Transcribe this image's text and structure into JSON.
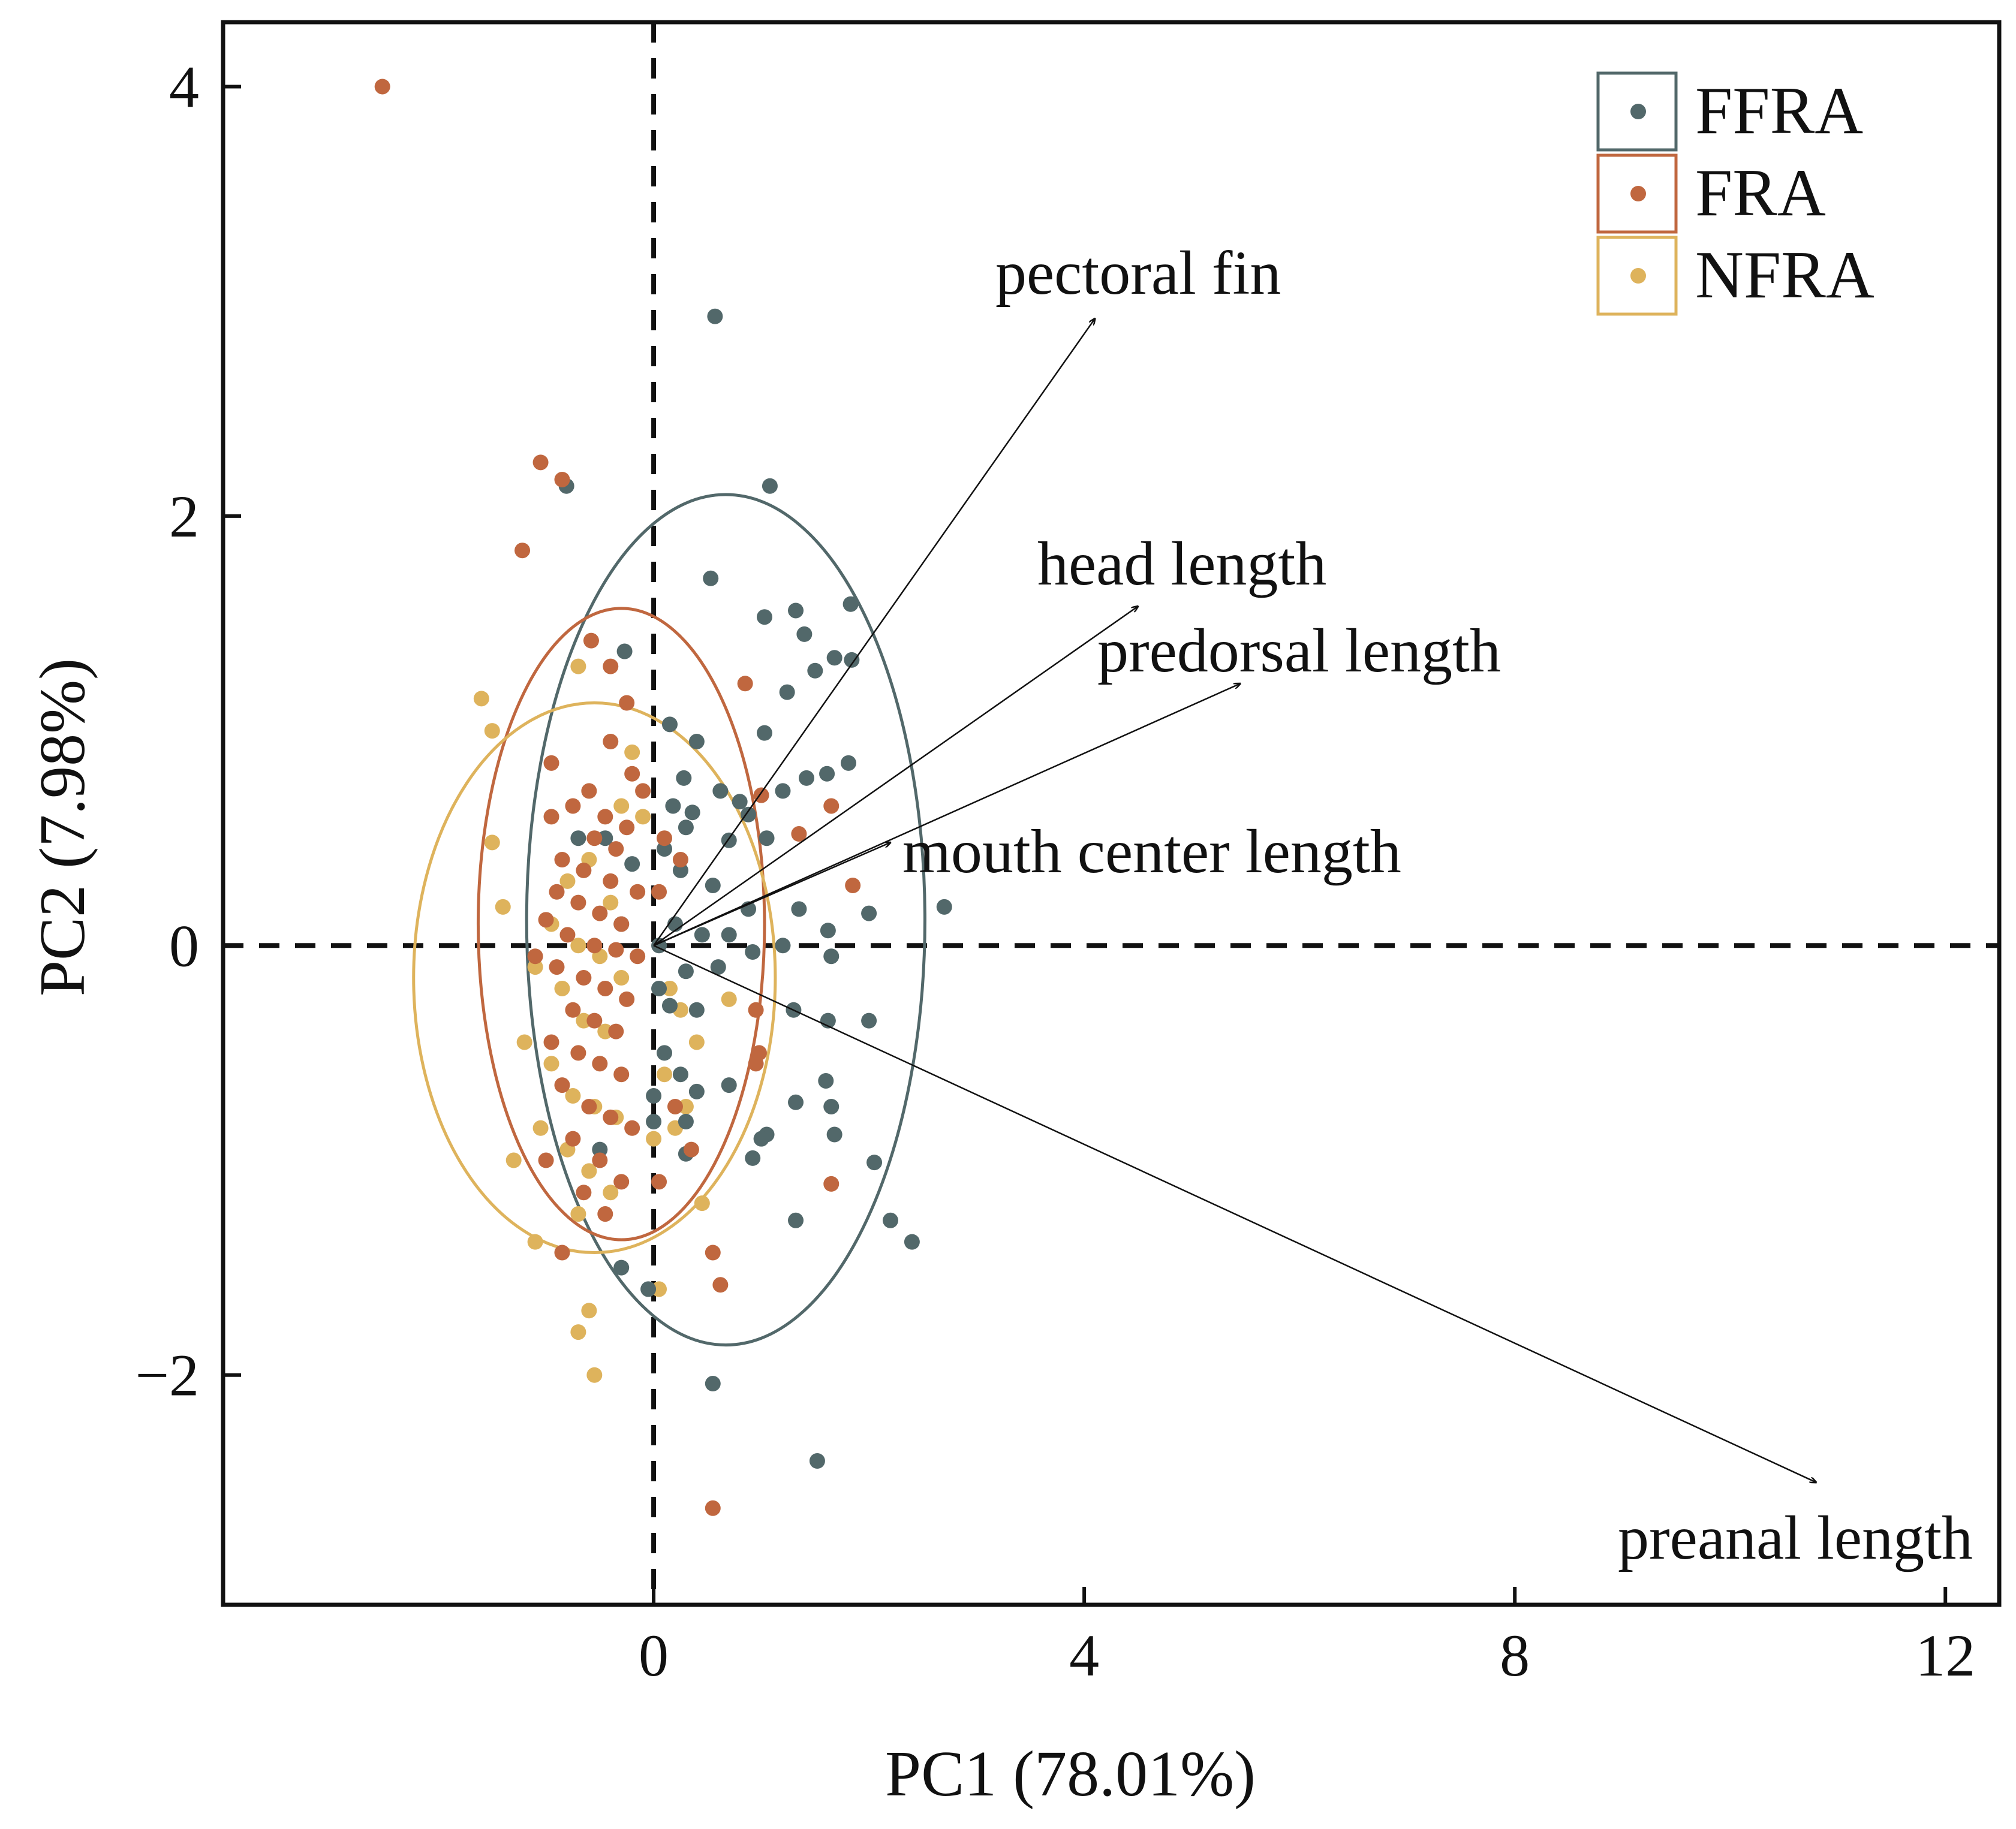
{
  "chart_data": {
    "type": "scatter",
    "subtype": "PCA biplot",
    "xlabel": "PC1 (78.01%)",
    "ylabel": "PC2 (7.98%)",
    "xlim": [
      -4.0,
      12.5
    ],
    "ylim": [
      -3.07,
      4.3
    ],
    "xticks": [
      0,
      4,
      8,
      12
    ],
    "xtick_labels": [
      "0",
      "4",
      "8",
      "12"
    ],
    "yticks": [
      -2,
      0,
      2,
      4
    ],
    "ytick_labels": [
      "−2",
      "0",
      "2",
      "4"
    ],
    "reference_lines": {
      "x": 0,
      "y": 0,
      "style": "dashed"
    },
    "legend": {
      "placement": "top-right",
      "style": "boxed"
    },
    "series": [
      {
        "name": "FFRA",
        "color": "#52686a",
        "ellipse": {
          "center": [
            0.67,
            0.12
          ],
          "rx": 1.85,
          "ry": 1.98
        },
        "points": [
          [
            0.57,
            2.93
          ],
          [
            1.08,
            2.14
          ],
          [
            -0.81,
            2.14
          ],
          [
            0.53,
            1.71
          ],
          [
            1.32,
            1.56
          ],
          [
            1.03,
            1.53
          ],
          [
            1.68,
            1.34
          ],
          [
            1.5,
            1.28
          ],
          [
            1.4,
            1.45
          ],
          [
            1.83,
            1.59
          ],
          [
            1.84,
            1.33
          ],
          [
            1.24,
            1.18
          ],
          [
            -0.27,
            1.37
          ],
          [
            1.03,
            0.99
          ],
          [
            0.15,
            1.03
          ],
          [
            0.4,
            0.95
          ],
          [
            0.28,
            0.78
          ],
          [
            1.42,
            0.78
          ],
          [
            1.81,
            0.85
          ],
          [
            1.61,
            0.8
          ],
          [
            0.62,
            0.72
          ],
          [
            0.8,
            0.67
          ],
          [
            1.2,
            0.72
          ],
          [
            0.88,
            0.61
          ],
          [
            0.18,
            0.65
          ],
          [
            0.36,
            0.62
          ],
          [
            0.7,
            0.49
          ],
          [
            1.05,
            0.5
          ],
          [
            0.1,
            0.45
          ],
          [
            -0.45,
            0.5
          ],
          [
            0.25,
            0.35
          ],
          [
            0.55,
            0.28
          ],
          [
            0.2,
            0.1
          ],
          [
            0.88,
            0.17
          ],
          [
            1.35,
            0.17
          ],
          [
            1.62,
            0.07
          ],
          [
            2.0,
            0.15
          ],
          [
            2.7,
            0.18
          ],
          [
            0.45,
            0.05
          ],
          [
            0.7,
            0.05
          ],
          [
            1.2,
            0.0
          ],
          [
            0.92,
            -0.03
          ],
          [
            0.6,
            -0.1
          ],
          [
            0.3,
            -0.12
          ],
          [
            1.65,
            -0.05
          ],
          [
            0.05,
            -0.2
          ],
          [
            0.15,
            -0.28
          ],
          [
            0.4,
            -0.3
          ],
          [
            1.3,
            -0.3
          ],
          [
            1.62,
            -0.35
          ],
          [
            2.0,
            -0.35
          ],
          [
            0.1,
            -0.5
          ],
          [
            0.25,
            -0.6
          ],
          [
            0.0,
            -0.7
          ],
          [
            0.7,
            -0.65
          ],
          [
            1.6,
            -0.63
          ],
          [
            1.65,
            -0.75
          ],
          [
            1.32,
            -0.73
          ],
          [
            0.4,
            -0.68
          ],
          [
            0.3,
            -0.82
          ],
          [
            0.0,
            -0.82
          ],
          [
            1.05,
            -0.88
          ],
          [
            1.0,
            -0.9
          ],
          [
            1.68,
            -0.88
          ],
          [
            2.05,
            -1.01
          ],
          [
            0.92,
            -0.99
          ],
          [
            0.3,
            -0.97
          ],
          [
            -0.5,
            -0.95
          ],
          [
            1.32,
            -1.28
          ],
          [
            2.2,
            -1.28
          ],
          [
            2.4,
            -1.38
          ],
          [
            -0.3,
            -1.5
          ],
          [
            -0.05,
            -1.6
          ],
          [
            0.55,
            -2.04
          ],
          [
            1.52,
            -2.4
          ],
          [
            -0.7,
            0.5
          ],
          [
            -0.2,
            0.38
          ],
          [
            0.3,
            0.55
          ],
          [
            -0.3,
            0.1
          ],
          [
            0.05,
            0.0
          ]
        ]
      },
      {
        "name": "FRA",
        "color": "#c0673f",
        "ellipse": {
          "center": [
            -0.3,
            0.1
          ],
          "rx": 1.33,
          "ry": 1.47
        },
        "points": [
          [
            -2.52,
            4.0
          ],
          [
            -1.05,
            2.25
          ],
          [
            -0.85,
            2.17
          ],
          [
            -1.22,
            1.84
          ],
          [
            -0.58,
            1.42
          ],
          [
            -0.25,
            1.13
          ],
          [
            -0.4,
            0.95
          ],
          [
            -0.2,
            0.8
          ],
          [
            -0.1,
            0.72
          ],
          [
            -0.6,
            0.72
          ],
          [
            -0.75,
            0.65
          ],
          [
            -0.95,
            0.6
          ],
          [
            -0.45,
            0.6
          ],
          [
            -0.25,
            0.55
          ],
          [
            -0.55,
            0.5
          ],
          [
            -0.35,
            0.45
          ],
          [
            -0.85,
            0.4
          ],
          [
            -0.65,
            0.35
          ],
          [
            -0.4,
            0.3
          ],
          [
            -0.15,
            0.25
          ],
          [
            -0.9,
            0.25
          ],
          [
            -0.7,
            0.2
          ],
          [
            -0.5,
            0.15
          ],
          [
            -0.3,
            0.1
          ],
          [
            -1.0,
            0.12
          ],
          [
            -0.8,
            0.05
          ],
          [
            -0.55,
            0.0
          ],
          [
            -0.35,
            -0.02
          ],
          [
            -0.15,
            -0.05
          ],
          [
            -1.1,
            -0.05
          ],
          [
            -0.9,
            -0.1
          ],
          [
            -0.65,
            -0.15
          ],
          [
            -0.45,
            -0.2
          ],
          [
            -0.25,
            -0.25
          ],
          [
            -0.75,
            -0.3
          ],
          [
            -0.55,
            -0.35
          ],
          [
            -0.35,
            -0.4
          ],
          [
            -0.95,
            -0.45
          ],
          [
            -0.7,
            -0.5
          ],
          [
            -0.5,
            -0.55
          ],
          [
            -0.3,
            -0.6
          ],
          [
            -0.85,
            -0.65
          ],
          [
            -0.6,
            -0.75
          ],
          [
            -0.4,
            -0.8
          ],
          [
            -0.2,
            -0.85
          ],
          [
            -0.75,
            -0.9
          ],
          [
            -0.5,
            -1.0
          ],
          [
            -0.3,
            -1.1
          ],
          [
            -0.65,
            -1.15
          ],
          [
            -0.45,
            -1.25
          ],
          [
            0.85,
            1.22
          ],
          [
            1.0,
            0.7
          ],
          [
            1.65,
            0.65
          ],
          [
            1.35,
            0.52
          ],
          [
            1.85,
            0.28
          ],
          [
            0.1,
            0.5
          ],
          [
            0.25,
            0.4
          ],
          [
            0.05,
            0.25
          ],
          [
            0.95,
            -0.3
          ],
          [
            0.98,
            -0.5
          ],
          [
            0.95,
            -0.55
          ],
          [
            0.2,
            -0.75
          ],
          [
            0.35,
            -0.95
          ],
          [
            0.05,
            -1.1
          ],
          [
            1.65,
            -1.11
          ],
          [
            0.55,
            -1.43
          ],
          [
            0.62,
            -1.58
          ],
          [
            -1.0,
            -1.0
          ],
          [
            -0.85,
            -1.43
          ],
          [
            0.55,
            -2.62
          ],
          [
            -0.95,
            0.85
          ],
          [
            -0.4,
            1.3
          ]
        ]
      },
      {
        "name": "NFRA",
        "color": "#deb35c",
        "ellipse": {
          "center": [
            -0.55,
            -0.15
          ],
          "rx": 1.68,
          "ry": 1.28
        },
        "points": [
          [
            -1.6,
            1.15
          ],
          [
            -1.5,
            1.0
          ],
          [
            -0.7,
            1.3
          ],
          [
            -0.2,
            0.9
          ],
          [
            -1.5,
            0.48
          ],
          [
            -0.3,
            0.65
          ],
          [
            -0.1,
            0.6
          ],
          [
            -0.6,
            0.4
          ],
          [
            -0.8,
            0.3
          ],
          [
            -0.4,
            0.2
          ],
          [
            -1.4,
            0.18
          ],
          [
            -0.95,
            0.1
          ],
          [
            -0.7,
            0.0
          ],
          [
            -0.5,
            -0.05
          ],
          [
            -1.1,
            -0.1
          ],
          [
            -0.85,
            -0.2
          ],
          [
            -0.65,
            -0.35
          ],
          [
            -0.45,
            -0.4
          ],
          [
            -1.2,
            -0.45
          ],
          [
            -0.95,
            -0.55
          ],
          [
            -0.75,
            -0.7
          ],
          [
            -0.55,
            -0.75
          ],
          [
            -0.35,
            -0.8
          ],
          [
            -1.05,
            -0.85
          ],
          [
            -0.8,
            -0.95
          ],
          [
            -0.6,
            -1.05
          ],
          [
            -0.4,
            -1.15
          ],
          [
            -1.3,
            -1.0
          ],
          [
            -0.7,
            -1.25
          ],
          [
            0.25,
            -0.3
          ],
          [
            0.4,
            -0.45
          ],
          [
            0.1,
            -0.6
          ],
          [
            0.3,
            -0.75
          ],
          [
            0.0,
            -0.9
          ],
          [
            0.45,
            -1.2
          ],
          [
            0.7,
            -0.25
          ],
          [
            0.15,
            -0.2
          ],
          [
            -1.1,
            -1.38
          ],
          [
            -0.6,
            -1.7
          ],
          [
            -0.7,
            -1.8
          ],
          [
            -0.55,
            -2.0
          ],
          [
            0.05,
            -1.6
          ],
          [
            0.2,
            -0.85
          ],
          [
            -0.3,
            -0.15
          ]
        ]
      }
    ],
    "vectors": [
      {
        "label": "pectoral fin",
        "x": 4.1,
        "y": 2.92
      },
      {
        "label": "head length",
        "x": 4.5,
        "y": 1.58
      },
      {
        "label": "predorsal length",
        "x": 5.45,
        "y": 1.22
      },
      {
        "label": "mouth center length",
        "x": 2.2,
        "y": 0.48
      },
      {
        "label": "preanal length",
        "x": 10.8,
        "y": -2.5
      }
    ]
  }
}
